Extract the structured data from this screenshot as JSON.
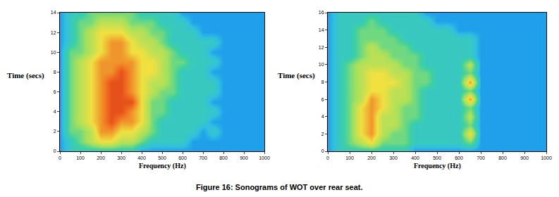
{
  "caption": "Figure 16: Sonograms of WOT over rear seat.",
  "chart_data": [
    {
      "type": "heatmap",
      "x_label": "Frequency (Hz)",
      "y_label": "Time (secs)",
      "xlim": [
        0,
        1000
      ],
      "ylim": [
        0,
        14
      ],
      "xticks": [
        0,
        100,
        200,
        300,
        400,
        500,
        600,
        700,
        800,
        900,
        1000
      ],
      "yticks": [
        0,
        2,
        4,
        6,
        8,
        10,
        12,
        14
      ],
      "z_range": [
        0,
        10
      ],
      "x": [
        0,
        50,
        100,
        150,
        200,
        250,
        300,
        350,
        400,
        450,
        500,
        550,
        600,
        650,
        700,
        750,
        800,
        850,
        900,
        950,
        1000
      ],
      "y": [
        0,
        1,
        2,
        3,
        4,
        5,
        6,
        7,
        8,
        9,
        10,
        11,
        12,
        13,
        14
      ],
      "cells": [
        [
          3,
          4,
          4,
          4,
          4,
          4,
          4,
          4,
          3,
          3,
          3,
          3,
          3,
          3,
          3,
          3,
          3,
          3,
          3,
          3,
          3
        ],
        [
          3,
          4,
          5,
          6,
          7,
          7,
          6,
          6,
          5,
          4,
          4,
          4,
          4,
          3,
          3,
          3,
          3,
          3,
          3,
          3,
          3
        ],
        [
          3,
          5,
          5,
          6,
          8,
          8,
          7,
          7,
          6,
          5,
          4,
          4,
          4,
          4,
          3,
          4,
          3,
          3,
          3,
          3,
          3
        ],
        [
          3,
          5,
          6,
          7,
          8,
          9,
          8,
          8,
          7,
          5,
          4,
          4,
          4,
          4,
          4,
          3,
          3,
          3,
          3,
          3,
          3
        ],
        [
          3,
          5,
          6,
          7,
          8,
          9,
          9,
          8,
          7,
          5,
          5,
          4,
          4,
          4,
          4,
          4,
          3,
          3,
          3,
          3,
          3
        ],
        [
          3,
          5,
          6,
          7,
          8,
          9,
          9,
          9,
          7,
          5,
          5,
          4,
          4,
          4,
          4,
          3,
          3,
          3,
          3,
          3,
          3
        ],
        [
          3,
          5,
          6,
          7,
          8,
          9,
          9,
          8,
          7,
          6,
          5,
          5,
          4,
          4,
          4,
          4,
          3,
          3,
          3,
          3,
          3
        ],
        [
          3,
          5,
          6,
          7,
          8,
          9,
          9,
          8,
          7,
          6,
          6,
          5,
          4,
          4,
          4,
          4,
          3,
          3,
          3,
          3,
          3
        ],
        [
          3,
          5,
          6,
          7,
          8,
          8,
          9,
          8,
          7,
          7,
          6,
          5,
          4,
          4,
          4,
          3,
          3,
          3,
          3,
          3,
          3
        ],
        [
          3,
          5,
          6,
          7,
          8,
          8,
          8,
          8,
          7,
          7,
          6,
          5,
          5,
          4,
          4,
          4,
          3,
          3,
          3,
          3,
          3
        ],
        [
          3,
          5,
          5,
          6,
          7,
          8,
          8,
          7,
          7,
          6,
          6,
          5,
          4,
          4,
          4,
          3,
          3,
          3,
          3,
          3,
          3
        ],
        [
          3,
          4,
          5,
          6,
          7,
          8,
          8,
          7,
          6,
          6,
          5,
          4,
          4,
          4,
          4,
          4,
          3,
          3,
          3,
          3,
          3
        ],
        [
          3,
          4,
          5,
          6,
          7,
          7,
          7,
          6,
          6,
          5,
          5,
          4,
          4,
          4,
          3,
          3,
          3,
          3,
          3,
          3,
          3
        ],
        [
          3,
          4,
          5,
          5,
          6,
          6,
          6,
          5,
          5,
          5,
          4,
          4,
          4,
          3,
          3,
          3,
          3,
          3,
          3,
          3,
          3
        ],
        [
          3,
          4,
          4,
          5,
          5,
          5,
          5,
          5,
          4,
          4,
          4,
          4,
          3,
          3,
          3,
          3,
          3,
          3,
          3,
          3,
          3
        ]
      ]
    },
    {
      "type": "heatmap",
      "x_label": "Frequency (Hz)",
      "y_label": "Time (secs)",
      "xlim": [
        0,
        1000
      ],
      "ylim": [
        0,
        16
      ],
      "xticks": [
        0,
        100,
        200,
        300,
        400,
        500,
        600,
        700,
        800,
        900,
        1000
      ],
      "yticks": [
        0,
        2,
        4,
        6,
        8,
        10,
        12,
        14,
        16
      ],
      "z_range": [
        0,
        10
      ],
      "x": [
        0,
        50,
        100,
        150,
        200,
        250,
        300,
        350,
        400,
        450,
        500,
        550,
        600,
        650,
        700,
        750,
        800,
        850,
        900,
        950,
        1000
      ],
      "y": [
        0,
        1,
        2,
        3,
        4,
        5,
        6,
        7,
        8,
        9,
        10,
        11,
        12,
        13,
        14,
        15,
        16
      ],
      "cells": [
        [
          3,
          4,
          4,
          4,
          4,
          4,
          4,
          4,
          3,
          3,
          3,
          3,
          3,
          3,
          3,
          3,
          3,
          3,
          3,
          3,
          3
        ],
        [
          3,
          4,
          5,
          6,
          7,
          5,
          5,
          5,
          4,
          4,
          4,
          4,
          4,
          5,
          3,
          3,
          3,
          3,
          3,
          3,
          3
        ],
        [
          3,
          4,
          5,
          7,
          8,
          6,
          5,
          5,
          4,
          4,
          4,
          4,
          4,
          7,
          3,
          3,
          3,
          3,
          3,
          3,
          3
        ],
        [
          3,
          4,
          5,
          7,
          8,
          6,
          6,
          5,
          4,
          4,
          4,
          4,
          4,
          5,
          3,
          3,
          3,
          3,
          3,
          3,
          3
        ],
        [
          3,
          4,
          5,
          7,
          8,
          6,
          6,
          5,
          5,
          4,
          4,
          4,
          4,
          6,
          3,
          3,
          3,
          3,
          3,
          3,
          3
        ],
        [
          3,
          4,
          5,
          7,
          8,
          7,
          6,
          5,
          5,
          4,
          4,
          4,
          4,
          5,
          3,
          3,
          3,
          3,
          3,
          3,
          3
        ],
        [
          3,
          4,
          5,
          6,
          8,
          7,
          6,
          6,
          5,
          4,
          4,
          4,
          4,
          8,
          3,
          3,
          3,
          3,
          3,
          3,
          3
        ],
        [
          3,
          4,
          5,
          6,
          7,
          7,
          6,
          6,
          5,
          4,
          4,
          4,
          4,
          5,
          3,
          3,
          3,
          3,
          3,
          3,
          3
        ],
        [
          3,
          4,
          5,
          6,
          7,
          7,
          7,
          6,
          5,
          5,
          4,
          4,
          4,
          8,
          3,
          3,
          3,
          3,
          3,
          3,
          3
        ],
        [
          3,
          4,
          5,
          6,
          7,
          7,
          6,
          6,
          5,
          5,
          4,
          4,
          4,
          5,
          3,
          3,
          3,
          3,
          3,
          3,
          3
        ],
        [
          3,
          4,
          5,
          6,
          6,
          6,
          6,
          5,
          5,
          4,
          4,
          4,
          4,
          6,
          3,
          3,
          3,
          3,
          3,
          3,
          3
        ],
        [
          3,
          4,
          4,
          5,
          6,
          6,
          5,
          5,
          5,
          4,
          4,
          4,
          4,
          4,
          3,
          3,
          3,
          3,
          3,
          3,
          3
        ],
        [
          3,
          4,
          4,
          5,
          6,
          5,
          5,
          5,
          4,
          4,
          4,
          4,
          4,
          4,
          3,
          3,
          3,
          3,
          3,
          3,
          3
        ],
        [
          3,
          4,
          4,
          5,
          5,
          5,
          5,
          4,
          4,
          4,
          4,
          4,
          4,
          4,
          3,
          3,
          3,
          3,
          3,
          3,
          3
        ],
        [
          3,
          4,
          4,
          5,
          5,
          5,
          4,
          4,
          4,
          4,
          4,
          4,
          3,
          3,
          3,
          3,
          3,
          3,
          3,
          3,
          3
        ],
        [
          3,
          4,
          4,
          4,
          5,
          4,
          4,
          4,
          4,
          4,
          3,
          3,
          3,
          3,
          3,
          3,
          3,
          3,
          3,
          3,
          3
        ],
        [
          3,
          4,
          4,
          4,
          4,
          4,
          4,
          4,
          4,
          3,
          3,
          3,
          3,
          3,
          3,
          3,
          3,
          3,
          3,
          3,
          3
        ]
      ]
    }
  ]
}
